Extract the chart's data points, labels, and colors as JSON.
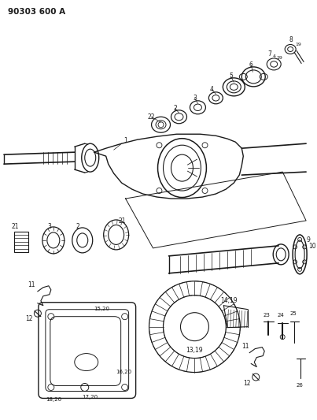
{
  "title": "90303 600 A",
  "bg_color": "#ffffff",
  "line_color": "#1a1a1a",
  "fig_width": 4.03,
  "fig_height": 5.33,
  "dpi": 100
}
